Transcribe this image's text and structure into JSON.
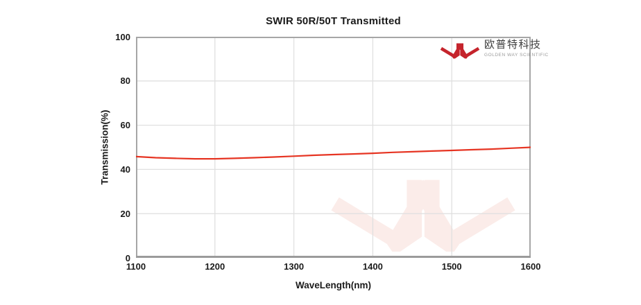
{
  "title": "SWIR 50R/50T Transmitted",
  "brand": {
    "name_cn": "欧普特科技",
    "name_en": "GOLDEN WAY SCIENTIFIC",
    "logo_icon": "jc-chevron-mark",
    "logo_color": "#c5242c",
    "watermark_color": "#fbece9"
  },
  "colors": {
    "curve": "#e63422",
    "plot_border": "#a6a6a6",
    "gridline": "#e0e0e0",
    "text": "#1a1a1a"
  },
  "chart_data": {
    "type": "line",
    "title": "SWIR 50R/50T Transmitted",
    "xlabel": "WaveLength(nm)",
    "ylabel": "Transmission(%)",
    "xlim": [
      1100,
      1600
    ],
    "ylim": [
      0,
      100
    ],
    "x_ticks": [
      1100,
      1200,
      1300,
      1400,
      1500,
      1600
    ],
    "y_ticks": [
      0,
      20,
      40,
      60,
      80,
      100
    ],
    "grid": true,
    "legend_position": "none",
    "series": [
      {
        "name": "Transmitted",
        "color": "#e63422",
        "x": [
          1100,
          1125,
          1150,
          1175,
          1200,
          1225,
          1250,
          1275,
          1300,
          1325,
          1350,
          1375,
          1400,
          1425,
          1450,
          1475,
          1500,
          1525,
          1550,
          1575,
          1600
        ],
        "y": [
          45.8,
          45.3,
          45.0,
          44.8,
          44.8,
          45.0,
          45.3,
          45.6,
          46.0,
          46.4,
          46.7,
          47.0,
          47.3,
          47.7,
          48.0,
          48.3,
          48.6,
          48.9,
          49.2,
          49.6,
          50.0
        ]
      }
    ]
  }
}
